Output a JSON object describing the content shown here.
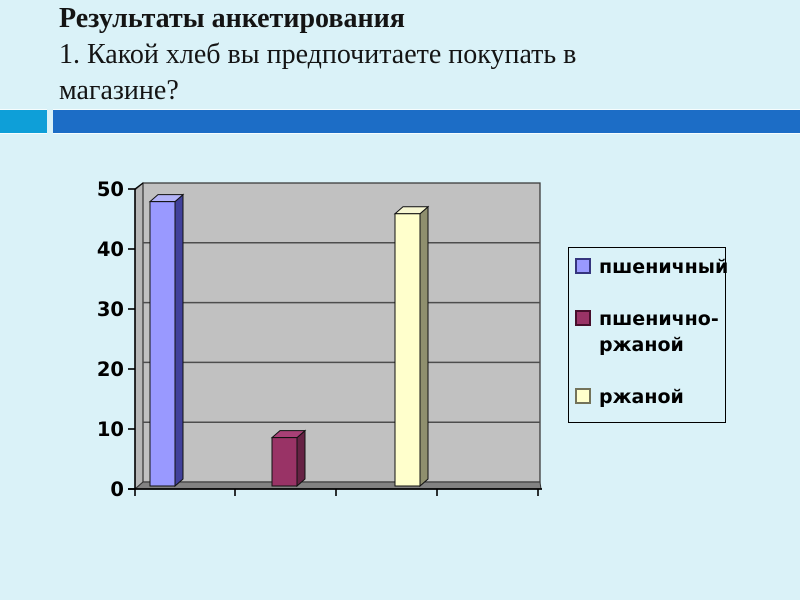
{
  "slide": {
    "title": "Результаты анкетирования",
    "subtitle_line1": "1. Какой хлеб вы предпочитаете покупать в",
    "subtitle_line2": "магазине?",
    "background": "#daf2f8"
  },
  "accent": {
    "cyan": "#0e9fd8",
    "blue": "#1c6dc6"
  },
  "chart_data": {
    "type": "bar",
    "view": "3d-column",
    "title": "",
    "xlabel": "",
    "ylabel": "",
    "categories": [
      "пшеничный",
      "пшенично-ржаной",
      "ржаной"
    ],
    "series": [
      {
        "name": "пшеничный",
        "value": 47,
        "front": "#9999ff",
        "side": "#41419b",
        "top": "#b4b4f8",
        "swatch_border": "#35357e"
      },
      {
        "name": "пшенично-ржаной",
        "value": 8,
        "front": "#993366",
        "side": "#662244",
        "top": "#a84076",
        "swatch_border": "#470f2c"
      },
      {
        "name": "ржаной",
        "value": 45,
        "front": "#ffffcc",
        "side": "#8f8f6e",
        "top": "#f7f7d2",
        "swatch_border": "#73735a"
      }
    ],
    "ylim": [
      0,
      50
    ],
    "yticks": [
      0,
      10,
      20,
      30,
      40,
      50
    ],
    "grid": true,
    "gridline_color": "#4d4d4d",
    "plot_bg": "#c1c1c1",
    "wall_color": "#b6b6b6",
    "floor_color": "#828282",
    "axis_color": "#000000",
    "tick_label_color": "#000000",
    "legend_position": "right"
  }
}
